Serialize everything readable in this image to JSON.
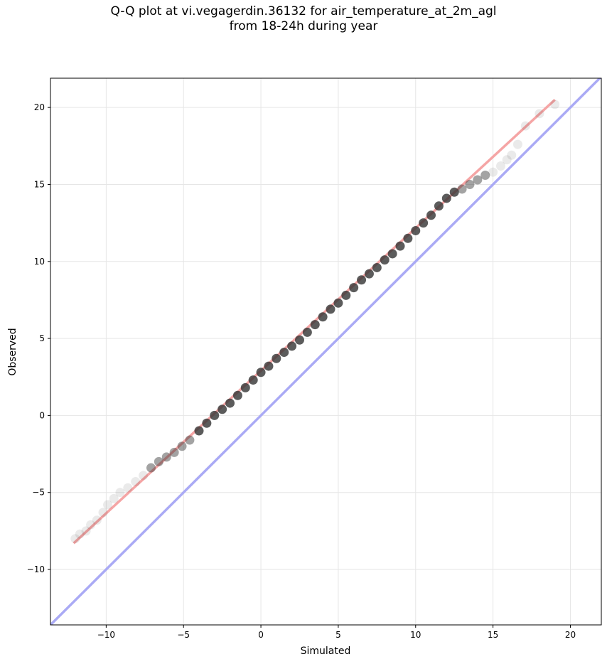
{
  "chart_data": {
    "type": "scatter",
    "title_lines": [
      "Q-Q plot at vi.vegagerdin.36132 for air_temperature_at_2m_agl",
      "from 18-24h during year"
    ],
    "xlabel": "Simulated",
    "ylabel": "Observed",
    "xlim": [
      -13.6,
      22.0
    ],
    "ylim": [
      -13.6,
      21.9
    ],
    "xticks": [
      -10,
      -5,
      0,
      5,
      10,
      15,
      20
    ],
    "yticks": [
      -10,
      -5,
      0,
      5,
      10,
      15,
      20
    ],
    "xtick_labels": [
      "−10",
      "−5",
      "0",
      "5",
      "10",
      "15",
      "20"
    ],
    "ytick_labels": [
      "−10",
      "−5",
      "0",
      "5",
      "10",
      "15",
      "20"
    ],
    "grid": true,
    "identity_line": {
      "from": [
        -13.6,
        -13.6
      ],
      "to": [
        22.0,
        22.0
      ],
      "color": "#aaaaf5"
    },
    "fit_line": {
      "from": [
        -12.1,
        -8.3
      ],
      "to": [
        19.0,
        20.5
      ],
      "color": "#f5a5a5"
    },
    "quantiles": {
      "x": [
        -12.0,
        -11.7,
        -11.3,
        -11.0,
        -10.6,
        -10.2,
        -9.9,
        -9.5,
        -9.1,
        -8.6,
        -8.1,
        -7.6,
        -7.1,
        -6.6,
        -6.1,
        -5.6,
        -5.1,
        -4.6,
        -4.0,
        -3.5,
        -3.0,
        -2.5,
        -2.0,
        -1.5,
        -1.0,
        -0.5,
        0.0,
        0.5,
        1.0,
        1.5,
        2.0,
        2.5,
        3.0,
        3.5,
        4.0,
        4.5,
        5.0,
        5.5,
        6.0,
        6.5,
        7.0,
        7.5,
        8.0,
        8.5,
        9.0,
        9.5,
        10.0,
        10.5,
        11.0,
        11.5,
        12.0,
        12.5,
        13.0,
        13.5,
        14.0,
        14.5,
        15.0,
        15.5,
        15.9,
        16.2,
        16.6,
        17.1,
        18.0,
        19.0
      ],
      "y": [
        -8.0,
        -7.7,
        -7.5,
        -7.1,
        -6.8,
        -6.3,
        -5.8,
        -5.4,
        -5.0,
        -4.7,
        -4.3,
        -3.9,
        -3.4,
        -3.0,
        -2.7,
        -2.4,
        -2.0,
        -1.6,
        -1.0,
        -0.5,
        0.0,
        0.4,
        0.8,
        1.3,
        1.8,
        2.3,
        2.8,
        3.2,
        3.7,
        4.1,
        4.5,
        4.9,
        5.4,
        5.9,
        6.4,
        6.9,
        7.3,
        7.8,
        8.3,
        8.8,
        9.2,
        9.6,
        10.1,
        10.5,
        11.0,
        11.5,
        12.0,
        12.5,
        13.0,
        13.6,
        14.1,
        14.5,
        14.7,
        15.0,
        15.3,
        15.6,
        15.8,
        16.2,
        16.6,
        16.9,
        17.6,
        18.8,
        19.6,
        20.2
      ]
    }
  }
}
